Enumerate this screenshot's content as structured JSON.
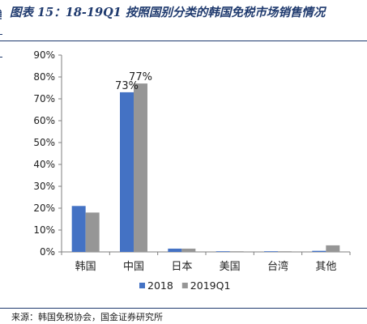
{
  "title": "图表 15：18-19Q1 按照国别分类的韩国免税市场销售情况",
  "side_fragment": "售",
  "source": "来源：韩国免税协会，国金证券研究所",
  "chart_data": {
    "type": "bar",
    "title": "",
    "xlabel": "",
    "ylabel": "",
    "ylim": [
      0,
      90
    ],
    "ytick_labels": [
      "0%",
      "10%",
      "20%",
      "30%",
      "40%",
      "50%",
      "60%",
      "70%",
      "80%",
      "90%"
    ],
    "grid": false,
    "legend_position": "bottom-center",
    "categories": [
      "韩国",
      "中国",
      "日本",
      "美国",
      "台湾",
      "其他"
    ],
    "series": [
      {
        "name": "2018",
        "color": "#4472c4",
        "values": [
          21,
          73,
          1.5,
          0.3,
          0.3,
          0.5
        ]
      },
      {
        "name": "2019Q1",
        "color": "#969696",
        "values": [
          18,
          77,
          1.5,
          0.3,
          0.3,
          3
        ]
      }
    ],
    "data_labels": [
      {
        "category": "中国",
        "series": "2018",
        "text": "73%"
      },
      {
        "category": "中国",
        "series": "2019Q1",
        "text": "77%"
      }
    ]
  }
}
